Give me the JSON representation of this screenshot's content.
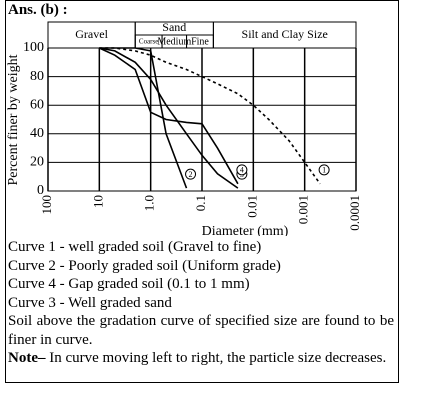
{
  "heading": "Ans. (b) :",
  "chart_data": {
    "type": "line",
    "x_label": "Diameter (mm)",
    "y_label": "Percent finer by weight",
    "log_x": true,
    "grid": true,
    "xlim": [
      100,
      0.0001
    ],
    "ylim": [
      0,
      100
    ],
    "xticks": [
      100,
      10,
      {
        "value": 1,
        "label": "1.0"
      },
      0.1,
      0.01,
      0.001,
      0.0001
    ],
    "yticks": [
      0,
      20,
      40,
      60,
      80,
      100
    ],
    "zones": [
      {
        "label": "Gravel",
        "from": 100,
        "to": 2
      },
      {
        "label": "Sand",
        "from": 2,
        "to": 0.06
      },
      {
        "label": "Silt and Clay Size",
        "from": 0.06,
        "to": 0.0001
      }
    ],
    "sand_zones": [
      {
        "label": "Coarse",
        "from": 2,
        "to": 0.6
      },
      {
        "label": "Medium",
        "from": 0.6,
        "to": 0.2
      },
      {
        "label": "Fine",
        "from": 0.2,
        "to": 0.06
      }
    ],
    "x": [
      10,
      5,
      2,
      1,
      0.5,
      0.2,
      0.1,
      0.05,
      0.02,
      0.01,
      0.005,
      0.002,
      0.001,
      0.0005
    ],
    "series": [
      {
        "name": "1",
        "color": "#000000",
        "style": "dashed",
        "values": [
          100,
          100,
          98,
          95,
          90,
          85,
          80,
          75,
          68,
          60,
          50,
          35,
          20,
          5
        ]
      },
      {
        "name": "2",
        "color": "#000000",
        "style": "solid",
        "values": [
          100,
          100,
          100,
          98,
          40,
          2,
          null,
          null,
          null,
          null,
          null,
          null,
          null,
          null
        ]
      },
      {
        "name": "3",
        "color": "#000000",
        "style": "solid",
        "values": [
          100,
          98,
          90,
          78,
          60,
          40,
          25,
          12,
          2,
          null,
          null,
          null,
          null,
          null
        ]
      },
      {
        "name": "4",
        "color": "#000000",
        "style": "solid",
        "values": [
          100,
          95,
          85,
          55,
          50,
          48,
          47,
          30,
          5,
          null,
          null,
          null,
          null,
          null
        ]
      }
    ]
  },
  "notes": [
    "Curve 1 - well graded soil (Gravel to fine)",
    "Curve 2 - Poorly graded soil (Uniform grade)",
    "Curve 4 - Gap graded soil (0.1 to 1 mm)",
    "Curve 3 - Well graded sand",
    "Soil above the gradation curve of specified size are found to be finer in curve."
  ],
  "note": {
    "label": "Note–",
    "text": " In curve moving left to right, the particle size decreases."
  }
}
